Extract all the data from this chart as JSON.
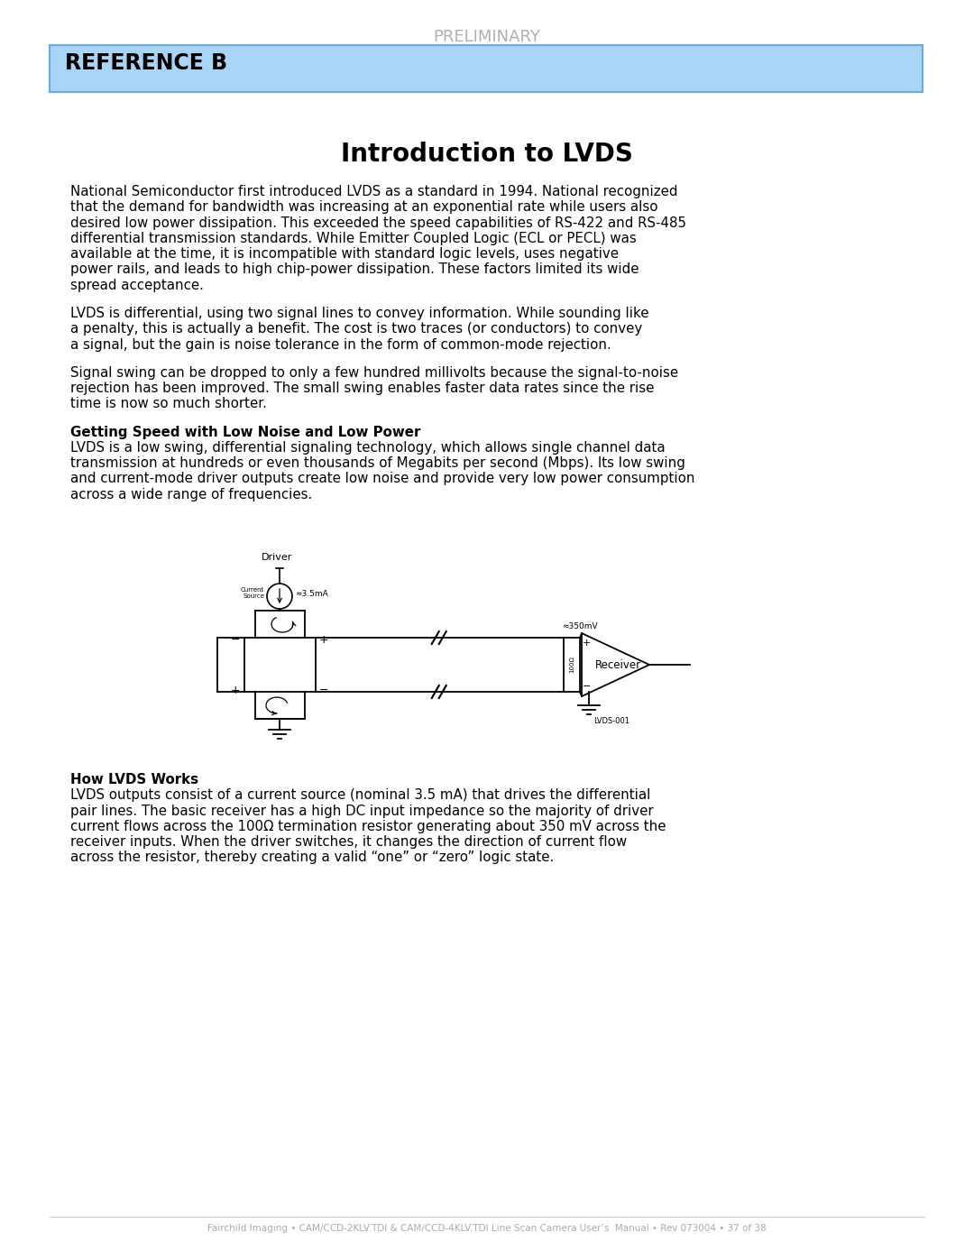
{
  "preliminary_text": "PRELIMINARY",
  "reference_header": "REFERENCE B",
  "reference_bg_color": "#a8d4f5",
  "reference_border_color": "#6aabdf",
  "page_title": "Introduction to LVDS",
  "body_color": "#000000",
  "gray_color": "#aaaaaa",
  "bg_color": "#ffffff",
  "para1": "National Semiconductor first introduced LVDS as a standard in 1994.  National recognized that the demand for bandwidth was increasing at an exponential rate while users also desired low power dissipation.  This exceeded the speed capabilities of RS-422 and RS-485 differential transmission standards.  While Emitter Coupled Logic (ECL or PECL) was available at the time, it is incompatible with standard logic levels, uses negative power rails, and leads to high chip-power dissipation.  These factors limited its wide spread acceptance.",
  "para2": "LVDS is differential, using two signal lines to convey information.  While sounding like a penalty, this is actually a benefit.  The cost is two traces (or conductors) to convey a signal, but the gain is noise tolerance in the form of common-mode rejection.",
  "para3": "Signal swing can be dropped to only a few hundred millivolts because the signal-to-noise rejection has been improved.  The small swing enables faster data rates since the rise time is now so much shorter.",
  "subhead1": "Getting Speed with Low Noise and Low Power",
  "para4": "LVDS is a low swing, differential signaling technology, which allows single channel data transmission at hundreds or even thousands of Megabits per second (Mbps).  Its low swing and current-mode driver outputs create low noise and provide very low power consumption across a wide range of frequencies.",
  "subhead2": "How LVDS Works",
  "para5": "LVDS outputs consist of a current source (nominal 3.5 mA) that drives the differential pair lines.  The basic receiver has a high DC input impedance so the majority of driver current flows across the 100Ω termination resistor generating about 350 mV across the receiver inputs.  When the driver switches, it changes the direction of current flow across the resistor, thereby creating a valid “one” or “zero” logic state.",
  "footer_text": "Fairchild Imaging • CAM/CCD-2KLV.TDI & CAM/CCD-4KLV.TDI Line Scan Camera User’s  Manual • Rev 073004 • 37 of 38",
  "fig_lines": [
    "National Semiconductor first introduced LVDS as a standard in 1994.  National recognized",
    "that the demand for bandwidth was increasing at an exponential rate while users also",
    "desired low power dissipation.  This exceeded the speed capabilities of RS-422 and RS-",
    "485 differential transmission standards.  While Emitter Coupled Logic (ECL or PECL) was",
    "available at the time, it is incompatible with standard logic levels, uses negative power rails,",
    "and leads to high chip-power dissipation.  These factors limited its wide spread acceptance."
  ]
}
